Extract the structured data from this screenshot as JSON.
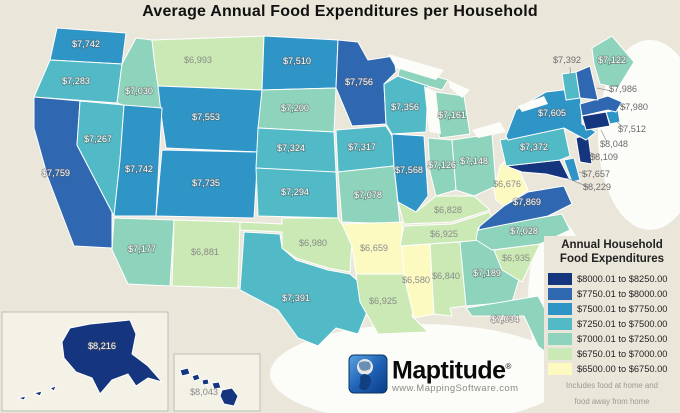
{
  "title": "Average Annual Food Expenditures per Household",
  "legend": {
    "title_line1": "Annual Household",
    "title_line2": "Food Expenditures",
    "footnote_line1": "Includes food at home and",
    "footnote_line2": "food away from home"
  },
  "branding": {
    "name": "Maptitude",
    "registered": "®",
    "url": "www.MappingSoftware.com"
  },
  "chart_data": {
    "type": "choropleth_map",
    "title": "Average Annual Food Expenditures per Household",
    "unit": "USD per household per year",
    "legend_title": "Annual Household Food Expenditures",
    "note": "Includes food at home and food away from home",
    "classes": [
      {
        "range": "$8000.01 to $8250.00",
        "color": "#15357e"
      },
      {
        "range": "$7750.01 to $8000.00",
        "color": "#2f67b1"
      },
      {
        "range": "$7500.01 to $7750.00",
        "color": "#2f94c6"
      },
      {
        "range": "$7250.01 to $7500.00",
        "color": "#52bac6"
      },
      {
        "range": "$7000.01 to $7250.00",
        "color": "#8ed3bb"
      },
      {
        "range": "$6750.01 to $7000.00",
        "color": "#cbe9b4"
      },
      {
        "range": "$6500.00 to $6750.00",
        "color": "#fcfac1"
      }
    ],
    "states": [
      {
        "id": "WA",
        "name": "Washington",
        "label": "$7,742",
        "value": 7742,
        "class": 2
      },
      {
        "id": "OR",
        "name": "Oregon",
        "label": "$7,283",
        "value": 7283,
        "class": 3
      },
      {
        "id": "CA",
        "name": "California",
        "label": "$7,759",
        "value": 7759,
        "class": 1
      },
      {
        "id": "NV",
        "name": "Nevada",
        "label": "$7,267",
        "value": 7267,
        "class": 3
      },
      {
        "id": "ID",
        "name": "Idaho",
        "label": "$7,030",
        "value": 7030,
        "class": 4
      },
      {
        "id": "MT",
        "name": "Montana",
        "label": "$6,993",
        "value": 6993,
        "class": 5
      },
      {
        "id": "WY",
        "name": "Wyoming",
        "label": "$7,553",
        "value": 7553,
        "class": 2
      },
      {
        "id": "UT",
        "name": "Utah",
        "label": "$7,742",
        "value": 7742,
        "class": 2
      },
      {
        "id": "CO",
        "name": "Colorado",
        "label": "$7,735",
        "value": 7735,
        "class": 2
      },
      {
        "id": "AZ",
        "name": "Arizona",
        "label": "$7,177",
        "value": 7177,
        "class": 4
      },
      {
        "id": "NM",
        "name": "New Mexico",
        "label": "$6,881",
        "value": 6881,
        "class": 5
      },
      {
        "id": "ND",
        "name": "North Dakota",
        "label": "$7,510",
        "value": 7510,
        "class": 2
      },
      {
        "id": "SD",
        "name": "South Dakota",
        "label": "$7,200",
        "value": 7200,
        "class": 4
      },
      {
        "id": "NE",
        "name": "Nebraska",
        "label": "$7,324",
        "value": 7324,
        "class": 3
      },
      {
        "id": "KS",
        "name": "Kansas",
        "label": "$7,294",
        "value": 7294,
        "class": 3
      },
      {
        "id": "OK",
        "name": "Oklahoma",
        "label": "$6,980",
        "value": 6980,
        "class": 5
      },
      {
        "id": "TX",
        "name": "Texas",
        "label": "$7,391",
        "value": 7391,
        "class": 3
      },
      {
        "id": "MN",
        "name": "Minnesota",
        "label": "$7,756",
        "value": 7756,
        "class": 1
      },
      {
        "id": "IA",
        "name": "Iowa",
        "label": "$7,317",
        "value": 7317,
        "class": 3
      },
      {
        "id": "MO",
        "name": "Missouri",
        "label": "$7,078",
        "value": 7078,
        "class": 4
      },
      {
        "id": "AR",
        "name": "Arkansas",
        "label": "$6,659",
        "value": 6659,
        "class": 6
      },
      {
        "id": "LA",
        "name": "Louisiana",
        "label": "$6,925",
        "value": 6925,
        "class": 5
      },
      {
        "id": "WI",
        "name": "Wisconsin",
        "label": "$7,356",
        "value": 7356,
        "class": 3
      },
      {
        "id": "IL",
        "name": "Illinois",
        "label": "$7,568",
        "value": 7568,
        "class": 2
      },
      {
        "id": "MI",
        "name": "Michigan",
        "label": "$7,161",
        "value": 7161,
        "class": 4
      },
      {
        "id": "IN",
        "name": "Indiana",
        "label": "$7,126",
        "value": 7126,
        "class": 4
      },
      {
        "id": "OH",
        "name": "Ohio",
        "label": "$7,148",
        "value": 7148,
        "class": 4
      },
      {
        "id": "KY",
        "name": "Kentucky",
        "label": "$6,828",
        "value": 6828,
        "class": 5
      },
      {
        "id": "TN",
        "name": "Tennessee",
        "label": "$6,925",
        "value": 6925,
        "class": 5
      },
      {
        "id": "MS",
        "name": "Mississippi",
        "label": "$6,580",
        "value": 6580,
        "class": 6
      },
      {
        "id": "AL",
        "name": "Alabama",
        "label": "$6,840",
        "value": 6840,
        "class": 5
      },
      {
        "id": "GA",
        "name": "Georgia",
        "label": "$7,189",
        "value": 7189,
        "class": 4
      },
      {
        "id": "FL",
        "name": "Florida",
        "label": "$7,034",
        "value": 7034,
        "class": 4
      },
      {
        "id": "SC",
        "name": "South Carolina",
        "label": "$6,935",
        "value": 6935,
        "class": 5
      },
      {
        "id": "NC",
        "name": "North Carolina",
        "label": "$7,028",
        "value": 7028,
        "class": 4
      },
      {
        "id": "VA",
        "name": "Virginia",
        "label": "$7,869",
        "value": 7869,
        "class": 1
      },
      {
        "id": "WV",
        "name": "West Virginia",
        "label": "$6,676",
        "value": 6676,
        "class": 6
      },
      {
        "id": "MD",
        "name": "Maryland",
        "label": "$8,229",
        "value": 8229,
        "class": 0
      },
      {
        "id": "DE",
        "name": "Delaware",
        "label": "$7,657",
        "value": 7657,
        "class": 2
      },
      {
        "id": "PA",
        "name": "Pennsylvania",
        "label": "$7,372",
        "value": 7372,
        "class": 3
      },
      {
        "id": "NJ",
        "name": "New Jersey",
        "label": "$8,109",
        "value": 8109,
        "class": 0
      },
      {
        "id": "NY",
        "name": "New York",
        "label": "$7,605",
        "value": 7605,
        "class": 2
      },
      {
        "id": "CT",
        "name": "Connecticut",
        "label": "$8,048",
        "value": 8048,
        "class": 0
      },
      {
        "id": "RI",
        "name": "Rhode Island",
        "label": "$7,512",
        "value": 7512,
        "class": 2
      },
      {
        "id": "MA",
        "name": "Massachusetts",
        "label": "$7,980",
        "value": 7980,
        "class": 1
      },
      {
        "id": "VT",
        "name": "Vermont",
        "label": "$7,392",
        "value": 7392,
        "class": 3
      },
      {
        "id": "NH",
        "name": "New Hampshire",
        "label": "$7,986",
        "value": 7986,
        "class": 1
      },
      {
        "id": "ME",
        "name": "Maine",
        "label": "$7,122",
        "value": 7122,
        "class": 4
      },
      {
        "id": "AK",
        "name": "Alaska",
        "label": "$8,216",
        "value": 8216,
        "class": 0
      },
      {
        "id": "HI",
        "name": "Hawaii",
        "label": "$8,043",
        "value": 8043,
        "class": 0
      }
    ]
  }
}
